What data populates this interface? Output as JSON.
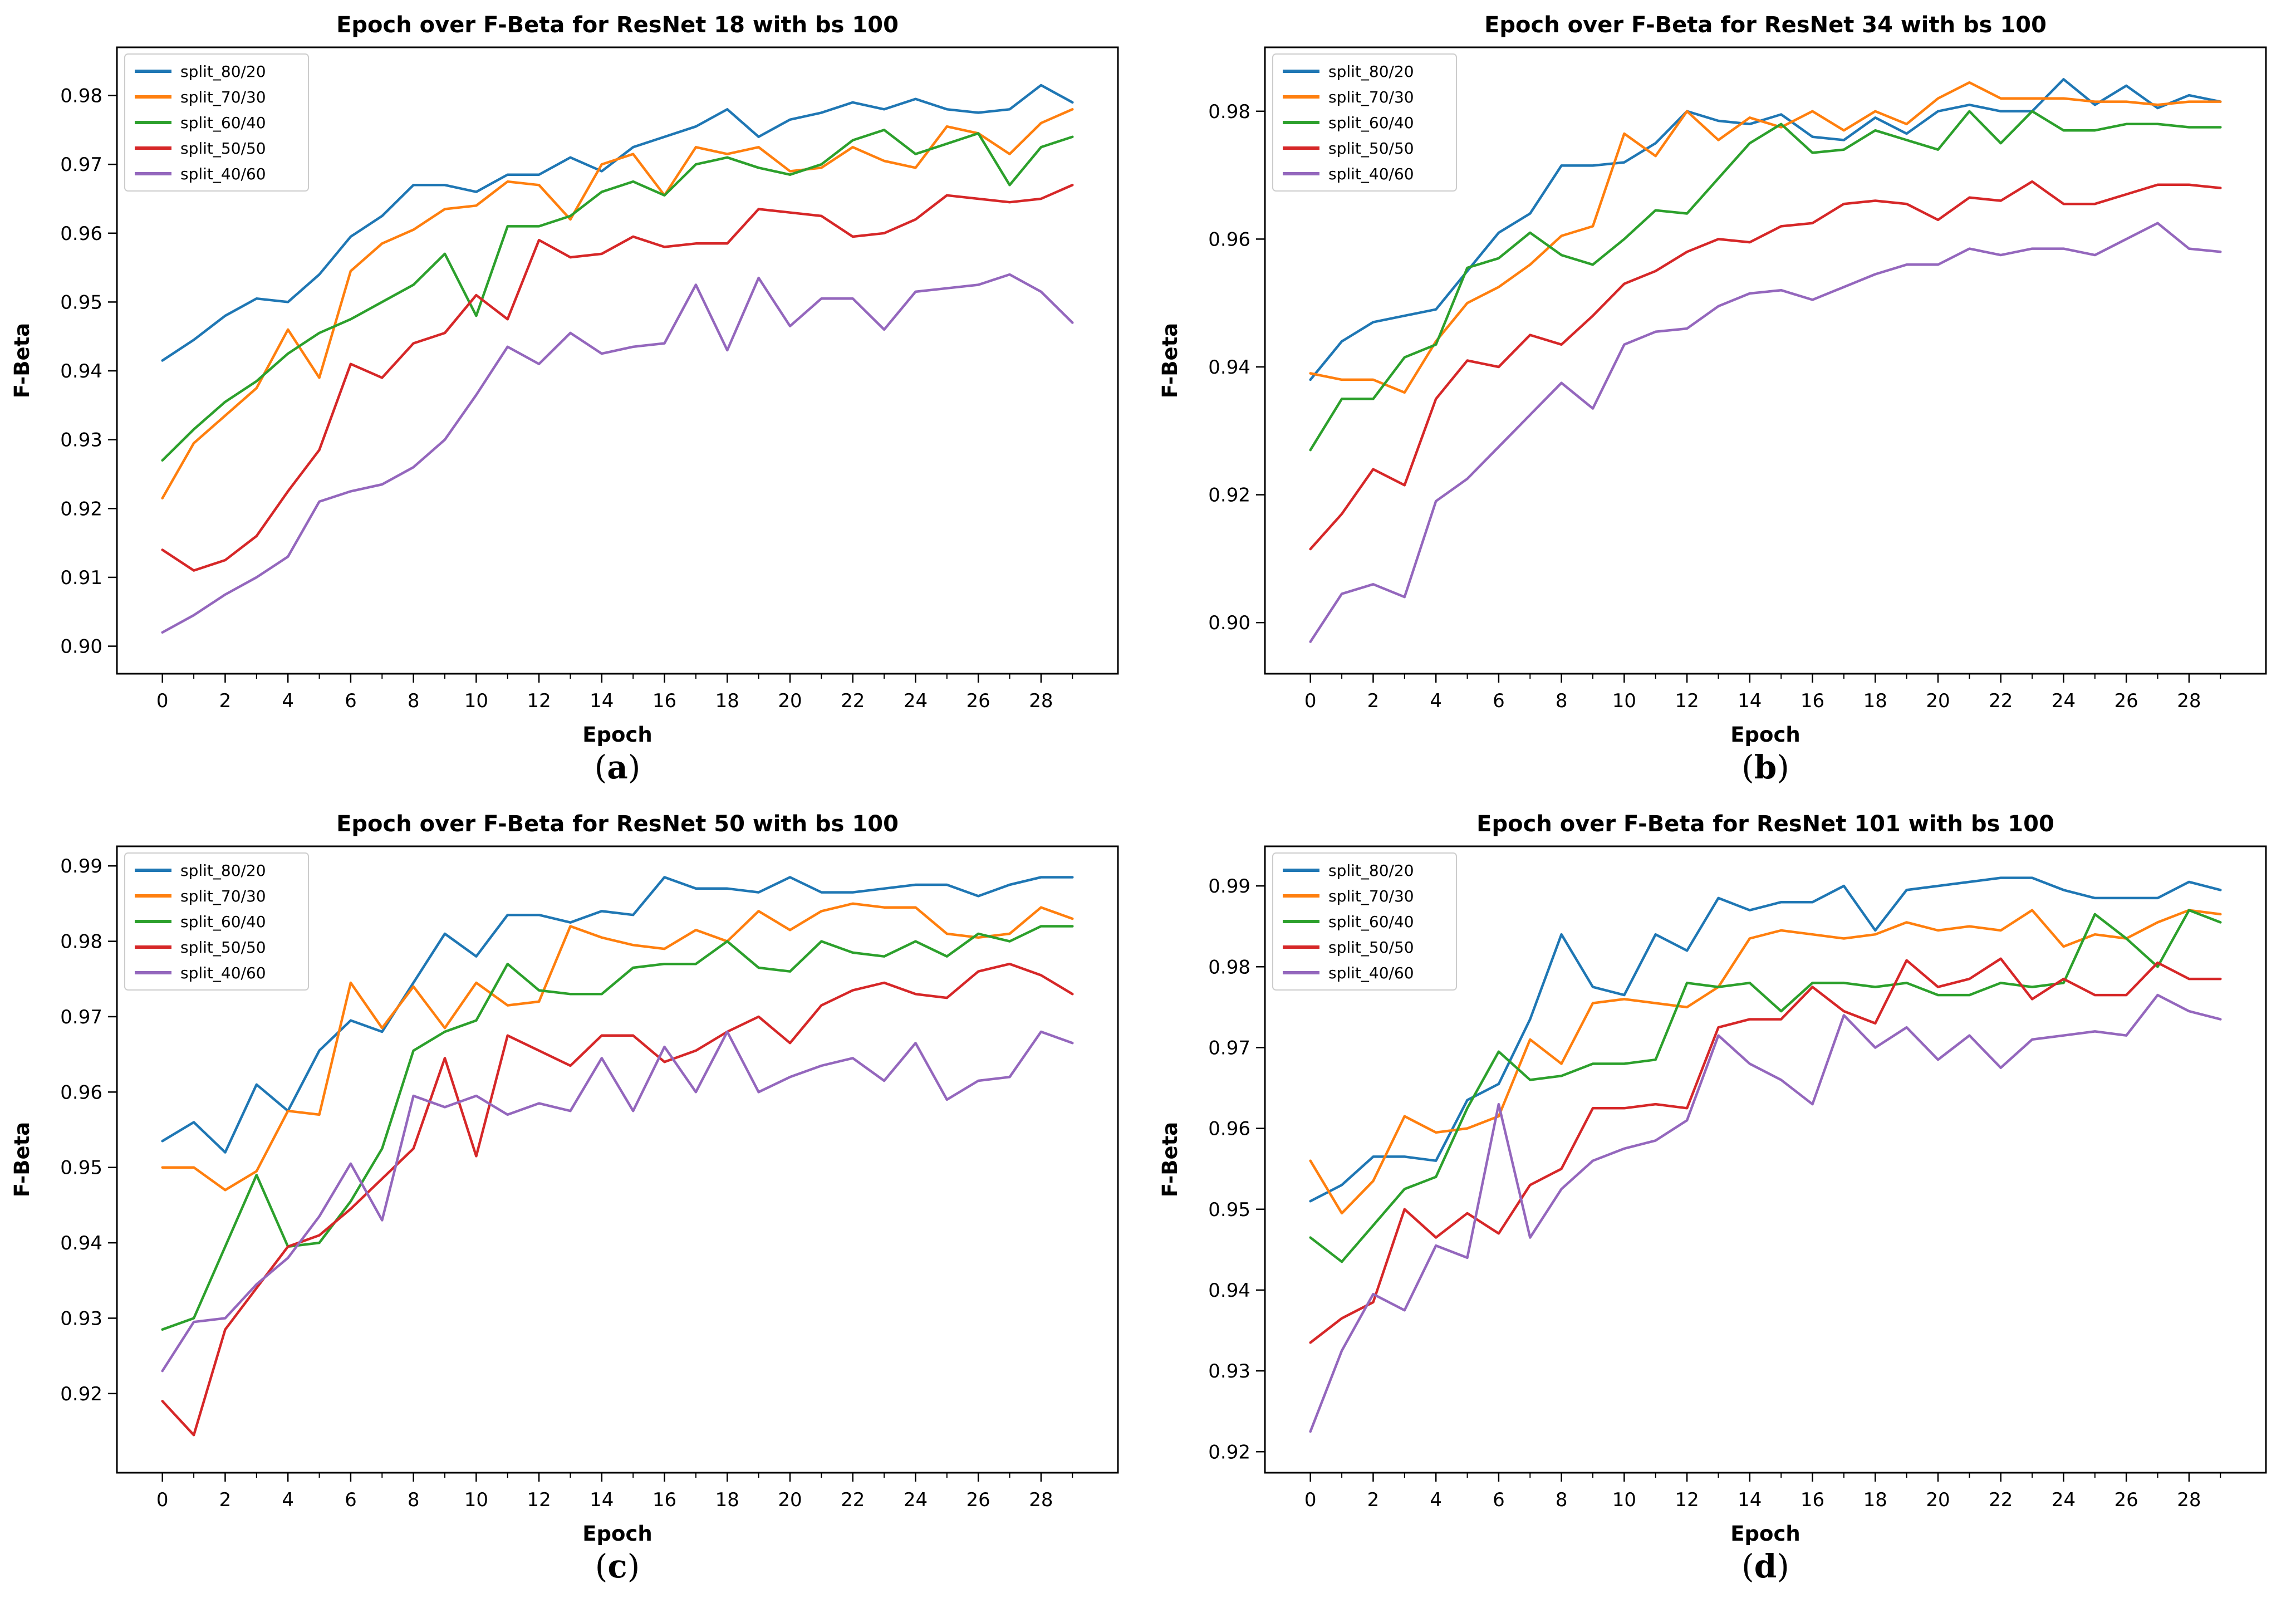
{
  "page": {
    "background": "#ffffff",
    "figure_type": "2x2 matplotlib line chart grid"
  },
  "shared": {
    "xlabel": "Epoch",
    "ylabel": "F-Beta",
    "x_major_ticks": [
      0,
      2,
      4,
      6,
      8,
      10,
      12,
      14,
      16,
      18,
      20,
      22,
      24,
      26,
      28
    ],
    "x_major_tick_labels": [
      "0",
      "2",
      "4",
      "6",
      "8",
      "10",
      "12",
      "14",
      "16",
      "18",
      "20",
      "22",
      "24",
      "26",
      "28"
    ],
    "xlim": [
      -1.45,
      30.45
    ],
    "epochs": 30,
    "legend_labels": [
      "split_80/20",
      "split_70/30",
      "split_60/40",
      "split_50/50",
      "split_40/60"
    ],
    "series_colors": [
      "#1f77b4",
      "#ff7f0e",
      "#2ca02c",
      "#d62728",
      "#9467bd"
    ],
    "spine_color": "#000000",
    "legend_border_color": "#cccccc"
  },
  "chart_data": [
    {
      "type": "line",
      "title": "Epoch over F-Beta for ResNet 18 with bs 100",
      "caption": "a",
      "xlabel": "Epoch",
      "ylabel": "F-Beta",
      "x": [
        0,
        1,
        2,
        3,
        4,
        5,
        6,
        7,
        8,
        9,
        10,
        11,
        12,
        13,
        14,
        15,
        16,
        17,
        18,
        19,
        20,
        21,
        22,
        23,
        24,
        25,
        26,
        27,
        28,
        29
      ],
      "xlim": [
        -1.45,
        30.45
      ],
      "ylim": [
        0.896,
        0.987
      ],
      "yticks": [
        0.9,
        0.91,
        0.92,
        0.93,
        0.94,
        0.95,
        0.96,
        0.97,
        0.98
      ],
      "ytick_labels": [
        "0.90",
        "0.91",
        "0.92",
        "0.93",
        "0.94",
        "0.95",
        "0.96",
        "0.97",
        "0.98"
      ],
      "grid": false,
      "legend_position": "upper left",
      "series": [
        {
          "name": "split_80/20",
          "color": "#1f77b4",
          "values": [
            0.9415,
            0.9445,
            0.948,
            0.9505,
            0.95,
            0.954,
            0.9595,
            0.9625,
            0.967,
            0.967,
            0.966,
            0.9685,
            0.9685,
            0.971,
            0.969,
            0.9725,
            0.974,
            0.9755,
            0.978,
            0.974,
            0.9765,
            0.9775,
            0.979,
            0.978,
            0.9795,
            0.978,
            0.9775,
            0.978,
            0.9815,
            0.979
          ]
        },
        {
          "name": "split_70/30",
          "color": "#ff7f0e",
          "values": [
            0.9215,
            0.9295,
            0.9335,
            0.9375,
            0.946,
            0.939,
            0.9545,
            0.9585,
            0.9605,
            0.9635,
            0.964,
            0.9675,
            0.967,
            0.962,
            0.97,
            0.9715,
            0.9655,
            0.9725,
            0.9715,
            0.9725,
            0.969,
            0.9695,
            0.9725,
            0.9705,
            0.9695,
            0.9755,
            0.9745,
            0.9715,
            0.976,
            0.978
          ]
        },
        {
          "name": "split_60/40",
          "color": "#2ca02c",
          "values": [
            0.927,
            0.9315,
            0.9355,
            0.9385,
            0.9425,
            0.9455,
            0.9475,
            0.95,
            0.9525,
            0.957,
            0.948,
            0.961,
            0.961,
            0.9625,
            0.966,
            0.9675,
            0.9655,
            0.97,
            0.971,
            0.9695,
            0.9685,
            0.97,
            0.9735,
            0.975,
            0.9715,
            0.973,
            0.9745,
            0.967,
            0.9725,
            0.974
          ]
        },
        {
          "name": "split_50/50",
          "color": "#d62728",
          "values": [
            0.914,
            0.911,
            0.9125,
            0.916,
            0.9225,
            0.9285,
            0.941,
            0.939,
            0.944,
            0.9455,
            0.951,
            0.9475,
            0.959,
            0.9565,
            0.957,
            0.9595,
            0.958,
            0.9585,
            0.9585,
            0.9635,
            0.963,
            0.9625,
            0.9595,
            0.96,
            0.962,
            0.9655,
            0.965,
            0.9645,
            0.965,
            0.967
          ]
        },
        {
          "name": "split_40/60",
          "color": "#9467bd",
          "values": [
            0.902,
            0.9045,
            0.9075,
            0.91,
            0.913,
            0.921,
            0.9225,
            0.9235,
            0.926,
            0.93,
            0.9365,
            0.9435,
            0.941,
            0.9455,
            0.9425,
            0.9435,
            0.944,
            0.9525,
            0.943,
            0.9535,
            0.9465,
            0.9505,
            0.9505,
            0.946,
            0.9515,
            0.952,
            0.9525,
            0.954,
            0.9515,
            0.947
          ]
        }
      ]
    },
    {
      "type": "line",
      "title": "Epoch over F-Beta for ResNet 34 with bs 100",
      "caption": "b",
      "xlabel": "Epoch",
      "ylabel": "F-Beta",
      "x": [
        0,
        1,
        2,
        3,
        4,
        5,
        6,
        7,
        8,
        9,
        10,
        11,
        12,
        13,
        14,
        15,
        16,
        17,
        18,
        19,
        20,
        21,
        22,
        23,
        24,
        25,
        26,
        27,
        28,
        29
      ],
      "xlim": [
        -1.45,
        30.45
      ],
      "ylim": [
        0.892,
        0.99
      ],
      "yticks": [
        0.9,
        0.92,
        0.94,
        0.96,
        0.98
      ],
      "ytick_labels": [
        "0.90",
        "0.92",
        "0.94",
        "0.96",
        "0.98"
      ],
      "grid": false,
      "legend_position": "upper left",
      "series": [
        {
          "name": "split_80/20",
          "color": "#1f77b4",
          "values": [
            0.938,
            0.944,
            0.947,
            0.948,
            0.949,
            0.955,
            0.961,
            0.964,
            0.9715,
            0.9715,
            0.972,
            0.975,
            0.98,
            0.9785,
            0.978,
            0.9795,
            0.976,
            0.9755,
            0.979,
            0.9765,
            0.98,
            0.981,
            0.98,
            0.98,
            0.985,
            0.981,
            0.984,
            0.9805,
            0.9825,
            0.9815
          ]
        },
        {
          "name": "split_70/30",
          "color": "#ff7f0e",
          "values": [
            0.939,
            0.938,
            0.938,
            0.936,
            0.944,
            0.95,
            0.9525,
            0.956,
            0.9605,
            0.962,
            0.9765,
            0.973,
            0.98,
            0.9755,
            0.979,
            0.9775,
            0.98,
            0.977,
            0.98,
            0.978,
            0.982,
            0.9845,
            0.982,
            0.982,
            0.982,
            0.9815,
            0.9815,
            0.981,
            0.9815,
            0.9815
          ]
        },
        {
          "name": "split_60/40",
          "color": "#2ca02c",
          "values": [
            0.927,
            0.935,
            0.935,
            0.9415,
            0.9435,
            0.9555,
            0.957,
            0.961,
            0.9575,
            0.956,
            0.96,
            0.9645,
            0.964,
            0.9695,
            0.975,
            0.978,
            0.9735,
            0.974,
            0.977,
            0.9755,
            0.974,
            0.98,
            0.975,
            0.98,
            0.977,
            0.977,
            0.978,
            0.978,
            0.9775,
            0.9775
          ]
        },
        {
          "name": "split_50/50",
          "color": "#d62728",
          "values": [
            0.9115,
            0.917,
            0.924,
            0.9215,
            0.935,
            0.941,
            0.94,
            0.945,
            0.9435,
            0.948,
            0.953,
            0.955,
            0.958,
            0.96,
            0.9595,
            0.962,
            0.9625,
            0.9655,
            0.966,
            0.9655,
            0.963,
            0.9665,
            0.966,
            0.969,
            0.9655,
            0.9655,
            0.967,
            0.9685,
            0.9685,
            0.968
          ]
        },
        {
          "name": "split_40/60",
          "color": "#9467bd",
          "values": [
            0.897,
            0.9045,
            0.906,
            0.904,
            0.919,
            0.9225,
            0.9275,
            0.9325,
            0.9375,
            0.9335,
            0.9435,
            0.9455,
            0.946,
            0.9495,
            0.9515,
            0.952,
            0.9505,
            0.9525,
            0.9545,
            0.956,
            0.956,
            0.9585,
            0.9575,
            0.9585,
            0.9585,
            0.9575,
            0.96,
            0.9625,
            0.9585,
            0.958
          ]
        }
      ]
    },
    {
      "type": "line",
      "title": "Epoch over F-Beta for ResNet 50 with bs 100",
      "caption": "c",
      "xlabel": "Epoch",
      "ylabel": "F-Beta",
      "x": [
        0,
        1,
        2,
        3,
        4,
        5,
        6,
        7,
        8,
        9,
        10,
        11,
        12,
        13,
        14,
        15,
        16,
        17,
        18,
        19,
        20,
        21,
        22,
        23,
        24,
        25,
        26,
        27,
        28,
        29
      ],
      "xlim": [
        -1.45,
        30.45
      ],
      "ylim": [
        0.9095,
        0.9926
      ],
      "yticks": [
        0.92,
        0.93,
        0.94,
        0.95,
        0.96,
        0.97,
        0.98,
        0.99
      ],
      "ytick_labels": [
        "0.92",
        "0.93",
        "0.94",
        "0.95",
        "0.96",
        "0.97",
        "0.98",
        "0.99"
      ],
      "grid": false,
      "legend_position": "upper left",
      "series": [
        {
          "name": "split_80/20",
          "color": "#1f77b4",
          "values": [
            0.9535,
            0.956,
            0.952,
            0.961,
            0.9575,
            0.9655,
            0.9695,
            0.968,
            0.9745,
            0.981,
            0.978,
            0.9835,
            0.9835,
            0.9825,
            0.984,
            0.9835,
            0.9885,
            0.987,
            0.987,
            0.9865,
            0.9885,
            0.9865,
            0.9865,
            0.987,
            0.9875,
            0.9875,
            0.986,
            0.9875,
            0.9885,
            0.9885
          ]
        },
        {
          "name": "split_70/30",
          "color": "#ff7f0e",
          "values": [
            0.95,
            0.95,
            0.947,
            0.9495,
            0.9575,
            0.957,
            0.9745,
            0.9685,
            0.974,
            0.9685,
            0.9745,
            0.9715,
            0.972,
            0.982,
            0.9805,
            0.9795,
            0.979,
            0.9815,
            0.98,
            0.984,
            0.9815,
            0.984,
            0.985,
            0.9845,
            0.9845,
            0.981,
            0.9805,
            0.981,
            0.9845,
            0.983
          ]
        },
        {
          "name": "split_60/40",
          "color": "#2ca02c",
          "values": [
            0.9285,
            0.93,
            0.9395,
            0.949,
            0.9395,
            0.94,
            0.9455,
            0.9525,
            0.9655,
            0.968,
            0.9695,
            0.977,
            0.9735,
            0.973,
            0.973,
            0.9765,
            0.977,
            0.977,
            0.98,
            0.9765,
            0.976,
            0.98,
            0.9785,
            0.978,
            0.98,
            0.978,
            0.981,
            0.98,
            0.982,
            0.982
          ]
        },
        {
          "name": "split_50/50",
          "color": "#d62728",
          "values": [
            0.919,
            0.9145,
            0.9285,
            0.934,
            0.9395,
            0.941,
            0.9445,
            0.9485,
            0.9525,
            0.9645,
            0.9515,
            0.9675,
            0.9655,
            0.9635,
            0.9675,
            0.9675,
            0.964,
            0.9655,
            0.968,
            0.97,
            0.9665,
            0.9715,
            0.9735,
            0.9745,
            0.973,
            0.9725,
            0.976,
            0.977,
            0.9755,
            0.973
          ]
        },
        {
          "name": "split_40/60",
          "color": "#9467bd",
          "values": [
            0.923,
            0.9295,
            0.93,
            0.9345,
            0.938,
            0.9435,
            0.9505,
            0.943,
            0.9595,
            0.958,
            0.9595,
            0.957,
            0.9585,
            0.9575,
            0.9645,
            0.9575,
            0.966,
            0.96,
            0.968,
            0.96,
            0.962,
            0.9635,
            0.9645,
            0.9615,
            0.9665,
            0.959,
            0.9615,
            0.962,
            0.968,
            0.9665
          ]
        }
      ]
    },
    {
      "type": "line",
      "title": "Epoch over F-Beta for ResNet 101 with bs 100",
      "caption": "d",
      "xlabel": "Epoch",
      "ylabel": "F-Beta",
      "x": [
        0,
        1,
        2,
        3,
        4,
        5,
        6,
        7,
        8,
        9,
        10,
        11,
        12,
        13,
        14,
        15,
        16,
        17,
        18,
        19,
        20,
        21,
        22,
        23,
        24,
        25,
        26,
        27,
        28,
        29
      ],
      "xlim": [
        -1.45,
        30.45
      ],
      "ylim": [
        0.9174,
        0.9949
      ],
      "yticks": [
        0.92,
        0.93,
        0.94,
        0.95,
        0.96,
        0.97,
        0.98,
        0.99
      ],
      "ytick_labels": [
        "0.92",
        "0.93",
        "0.94",
        "0.95",
        "0.96",
        "0.97",
        "0.98",
        "0.99"
      ],
      "grid": false,
      "legend_position": "upper left",
      "series": [
        {
          "name": "split_80/20",
          "color": "#1f77b4",
          "values": [
            0.951,
            0.953,
            0.9565,
            0.9565,
            0.956,
            0.9635,
            0.9655,
            0.9735,
            0.984,
            0.9775,
            0.9765,
            0.984,
            0.982,
            0.9885,
            0.987,
            0.988,
            0.988,
            0.99,
            0.9845,
            0.9895,
            0.99,
            0.9905,
            0.991,
            0.991,
            0.9895,
            0.9885,
            0.9885,
            0.9885,
            0.9905,
            0.9895
          ]
        },
        {
          "name": "split_70/30",
          "color": "#ff7f0e",
          "values": [
            0.956,
            0.9495,
            0.9535,
            0.9615,
            0.9595,
            0.96,
            0.9615,
            0.971,
            0.968,
            0.9755,
            0.976,
            0.9755,
            0.975,
            0.9775,
            0.9835,
            0.9845,
            0.984,
            0.9835,
            0.984,
            0.9855,
            0.9845,
            0.985,
            0.9845,
            0.987,
            0.9825,
            0.984,
            0.9835,
            0.9855,
            0.987,
            0.9865
          ]
        },
        {
          "name": "split_60/40",
          "color": "#2ca02c",
          "values": [
            0.9465,
            0.9435,
            0.948,
            0.9525,
            0.954,
            0.9625,
            0.9695,
            0.966,
            0.9665,
            0.968,
            0.968,
            0.9685,
            0.978,
            0.9775,
            0.978,
            0.9745,
            0.978,
            0.978,
            0.9775,
            0.978,
            0.9765,
            0.9765,
            0.978,
            0.9775,
            0.978,
            0.9865,
            0.9835,
            0.98,
            0.987,
            0.9855
          ]
        },
        {
          "name": "split_50/50",
          "color": "#d62728",
          "values": [
            0.9335,
            0.9365,
            0.9385,
            0.95,
            0.9465,
            0.9495,
            0.947,
            0.953,
            0.955,
            0.9625,
            0.9625,
            0.963,
            0.9625,
            0.9725,
            0.9735,
            0.9735,
            0.9775,
            0.9745,
            0.973,
            0.9808,
            0.9775,
            0.9785,
            0.981,
            0.976,
            0.9785,
            0.9765,
            0.9765,
            0.9805,
            0.9785,
            0.9785
          ]
        },
        {
          "name": "split_40/60",
          "color": "#9467bd",
          "values": [
            0.9225,
            0.9325,
            0.9395,
            0.9375,
            0.9455,
            0.944,
            0.963,
            0.9465,
            0.9525,
            0.956,
            0.9575,
            0.9585,
            0.961,
            0.9715,
            0.968,
            0.966,
            0.963,
            0.974,
            0.97,
            0.9725,
            0.9685,
            0.9715,
            0.9675,
            0.971,
            0.9715,
            0.972,
            0.9715,
            0.9765,
            0.9745,
            0.9735
          ]
        }
      ]
    }
  ]
}
